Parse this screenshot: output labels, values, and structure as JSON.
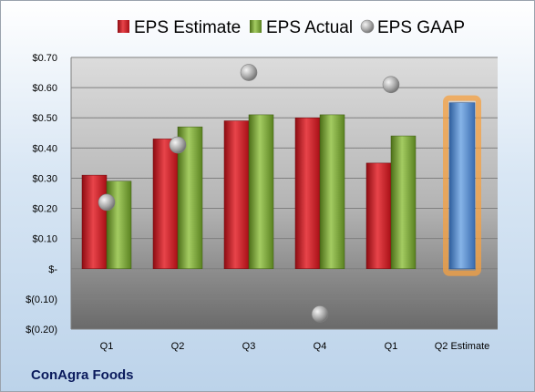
{
  "company": "ConAgra Foods",
  "chart_data": {
    "type": "bar",
    "categories": [
      "Q1",
      "Q2",
      "Q3",
      "Q4",
      "Q1",
      "Q2 Estimate"
    ],
    "series": [
      {
        "name": "EPS Estimate",
        "color": "#c8141c",
        "values": [
          0.31,
          0.43,
          0.49,
          0.5,
          0.35,
          null
        ]
      },
      {
        "name": "EPS Actual",
        "color": "#6f9a2c",
        "values": [
          0.29,
          0.47,
          0.51,
          0.51,
          0.44,
          null
        ]
      },
      {
        "name": "EPS GAAP",
        "color": "#9a9a9a",
        "marker": "circle",
        "values": [
          0.22,
          0.41,
          0.65,
          -0.15,
          0.61,
          null
        ]
      },
      {
        "name": "",
        "color": "#4f86c9",
        "highlight": "#f5a040",
        "values": [
          null,
          null,
          null,
          null,
          null,
          0.55
        ]
      }
    ],
    "ylim": [
      -0.2,
      0.7
    ],
    "yticks": [
      {
        "value": 0.7,
        "label": "$0.70"
      },
      {
        "value": 0.6,
        "label": "$0.60"
      },
      {
        "value": 0.5,
        "label": "$0.50"
      },
      {
        "value": 0.4,
        "label": "$0.40"
      },
      {
        "value": 0.3,
        "label": "$0.30"
      },
      {
        "value": 0.2,
        "label": "$0.20"
      },
      {
        "value": 0.1,
        "label": "$0.10"
      },
      {
        "value": 0.0,
        "label": "$-"
      },
      {
        "value": -0.1,
        "label": "$(0.10)"
      },
      {
        "value": -0.2,
        "label": "$(0.20)"
      }
    ],
    "legend": "top",
    "grid": true
  }
}
